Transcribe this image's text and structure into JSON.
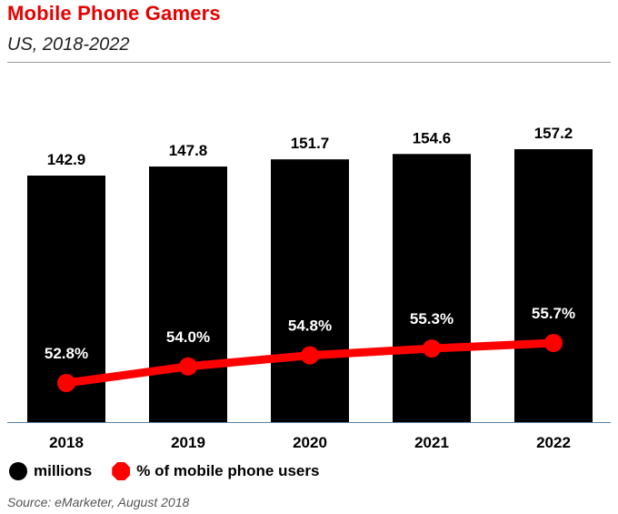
{
  "header": {
    "title": "Mobile Phone Gamers",
    "subtitle": "US, 2018-2022"
  },
  "legend": {
    "items": [
      {
        "label": "millions",
        "color": "#000000",
        "icon": "circle-swatch"
      },
      {
        "label": "% of mobile phone users",
        "color": "#ff0000",
        "icon": "octagon-swatch"
      }
    ]
  },
  "footer": {
    "source": "Source: eMarketer, August 2018"
  },
  "chart_data": {
    "type": "bar",
    "categories": [
      "2018",
      "2019",
      "2020",
      "2021",
      "2022"
    ],
    "series": [
      {
        "name": "millions",
        "type": "bar",
        "color": "#000000",
        "values": [
          142.9,
          147.8,
          151.7,
          154.6,
          157.2
        ],
        "labels": [
          "142.9",
          "147.8",
          "151.7",
          "154.6",
          "157.2"
        ]
      },
      {
        "name": "% of mobile phone users",
        "type": "line",
        "color": "#ff0000",
        "values": [
          52.8,
          54.0,
          54.8,
          55.3,
          55.7
        ],
        "labels": [
          "52.8%",
          "54.0%",
          "54.8%",
          "55.3%",
          "55.7%"
        ]
      }
    ],
    "grid": false,
    "legend_position": "bottom-left"
  }
}
